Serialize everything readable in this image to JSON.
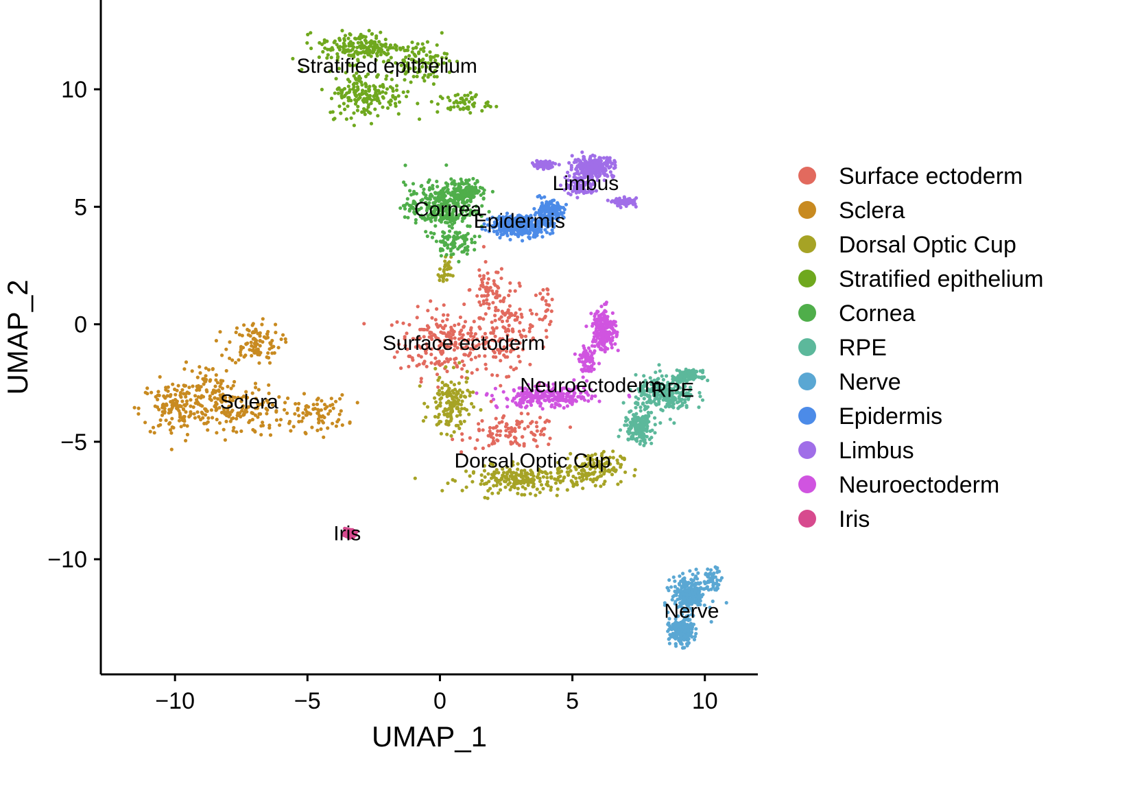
{
  "chart_data": {
    "type": "scatter",
    "xlabel": "UMAP_1",
    "ylabel": "UMAP_2",
    "xlim": [
      -12.8,
      12.0
    ],
    "ylim": [
      -14.9,
      13.8
    ],
    "x_ticks": [
      -10,
      -5,
      0,
      5,
      10
    ],
    "y_ticks": [
      -10,
      -5,
      0,
      5,
      10
    ],
    "x_tick_labels": [
      "−10",
      "−5",
      "0",
      "5",
      "10"
    ],
    "y_tick_labels": [
      "−10",
      "−5",
      "0",
      "5",
      "10"
    ],
    "grid": false,
    "legend_position": "right",
    "series": [
      {
        "name": "Surface ectoderm",
        "color": "#E26A5E",
        "blobs": [
          [
            0.2,
            -0.8,
            1.6,
            1.3,
            0.6
          ],
          [
            2.5,
            -0.3,
            1.0,
            1.6,
            0.4
          ],
          [
            1.8,
            1.5,
            0.6,
            1.0,
            0.15
          ],
          [
            2.8,
            -4.6,
            1.6,
            0.6,
            0.3
          ],
          [
            4.0,
            0.8,
            0.3,
            0.8,
            0.05
          ]
        ],
        "label": {
          "text": "Surface ectoderm",
          "x": 0.9,
          "y": -0.8
        }
      },
      {
        "name": "Sclera",
        "color": "#C88A20",
        "blobs": [
          [
            -10.0,
            -3.6,
            1.2,
            1.1,
            0.35
          ],
          [
            -7.0,
            -0.8,
            0.9,
            0.8,
            0.25
          ],
          [
            -7.7,
            -3.7,
            1.6,
            1.0,
            0.35
          ],
          [
            -4.7,
            -3.8,
            1.1,
            0.7,
            0.2
          ],
          [
            -8.7,
            -2.6,
            1.0,
            0.8,
            0.15
          ]
        ],
        "label": {
          "text": "Sclera",
          "x": -7.2,
          "y": -3.3
        }
      },
      {
        "name": "Dorsal Optic Cup",
        "color": "#A6A325",
        "blobs": [
          [
            3.2,
            -6.6,
            2.0,
            0.5,
            0.4
          ],
          [
            0.4,
            -3.4,
            0.7,
            1.1,
            0.25
          ],
          [
            5.8,
            -6.1,
            1.0,
            0.6,
            0.2
          ],
          [
            0.2,
            2.2,
            0.2,
            0.6,
            0.05
          ]
        ],
        "label": {
          "text": "Dorsal Optic Cup",
          "x": 3.5,
          "y": -5.8
        }
      },
      {
        "name": "Stratified epithelium",
        "color": "#6FA81E",
        "blobs": [
          [
            -3.0,
            11.8,
            1.4,
            0.6,
            0.35
          ],
          [
            -2.8,
            9.8,
            1.3,
            0.9,
            0.35
          ],
          [
            -0.8,
            11.2,
            1.0,
            0.8,
            0.2
          ],
          [
            0.9,
            9.4,
            0.9,
            0.4,
            0.1
          ]
        ],
        "label": {
          "text": "Stratified epithelium",
          "x": -2.0,
          "y": 11.0
        }
      },
      {
        "name": "Cornea",
        "color": "#4FAE4A",
        "blobs": [
          [
            0.0,
            5.0,
            1.2,
            0.9,
            0.6
          ],
          [
            1.0,
            5.7,
            0.7,
            0.4,
            0.25
          ],
          [
            0.5,
            3.5,
            0.6,
            0.5,
            0.15
          ]
        ],
        "label": {
          "text": "Cornea",
          "x": 0.3,
          "y": 4.9
        }
      },
      {
        "name": "RPE",
        "color": "#5CB89B",
        "blobs": [
          [
            8.5,
            -3.0,
            1.0,
            0.7,
            0.5
          ],
          [
            7.5,
            -4.4,
            0.5,
            0.6,
            0.3
          ],
          [
            9.4,
            -2.2,
            0.4,
            0.2,
            0.2
          ]
        ],
        "label": {
          "text": "RPE",
          "x": 8.8,
          "y": -2.8
        }
      },
      {
        "name": "Nerve",
        "color": "#5AA7D3",
        "blobs": [
          [
            9.4,
            -11.5,
            0.6,
            0.7,
            0.5
          ],
          [
            9.1,
            -13.1,
            0.4,
            0.5,
            0.4
          ],
          [
            10.3,
            -10.8,
            0.3,
            0.4,
            0.1
          ]
        ],
        "label": {
          "text": "Nerve",
          "x": 9.5,
          "y": -12.2
        }
      },
      {
        "name": "Epidermis",
        "color": "#4C8BE8",
        "blobs": [
          [
            3.0,
            4.2,
            1.0,
            0.4,
            0.7
          ],
          [
            4.1,
            4.8,
            0.5,
            0.4,
            0.3
          ]
        ],
        "label": {
          "text": "Epidermis",
          "x": 3.0,
          "y": 4.4
        }
      },
      {
        "name": "Limbus",
        "color": "#A06EE8",
        "blobs": [
          [
            5.8,
            6.7,
            0.7,
            0.4,
            0.5
          ],
          [
            5.3,
            5.9,
            0.5,
            0.4,
            0.2
          ],
          [
            7.0,
            5.2,
            0.4,
            0.15,
            0.15
          ],
          [
            3.9,
            6.8,
            0.4,
            0.15,
            0.15
          ]
        ],
        "label": {
          "text": "Limbus",
          "x": 5.5,
          "y": 6.0
        }
      },
      {
        "name": "Neuroectoderm",
        "color": "#D054E0",
        "blobs": [
          [
            4.0,
            -3.1,
            1.6,
            0.4,
            0.5
          ],
          [
            6.2,
            -0.2,
            0.4,
            0.8,
            0.35
          ],
          [
            5.6,
            -1.6,
            0.3,
            0.5,
            0.15
          ]
        ],
        "label": {
          "text": "Neuroectoderm",
          "x": 5.7,
          "y": -2.6
        }
      },
      {
        "name": "Iris",
        "color": "#D74A8E",
        "blobs": [
          [
            -3.4,
            -8.9,
            0.15,
            0.12,
            1.0
          ]
        ],
        "label": {
          "text": "Iris",
          "x": -3.5,
          "y": -8.9
        }
      }
    ]
  }
}
